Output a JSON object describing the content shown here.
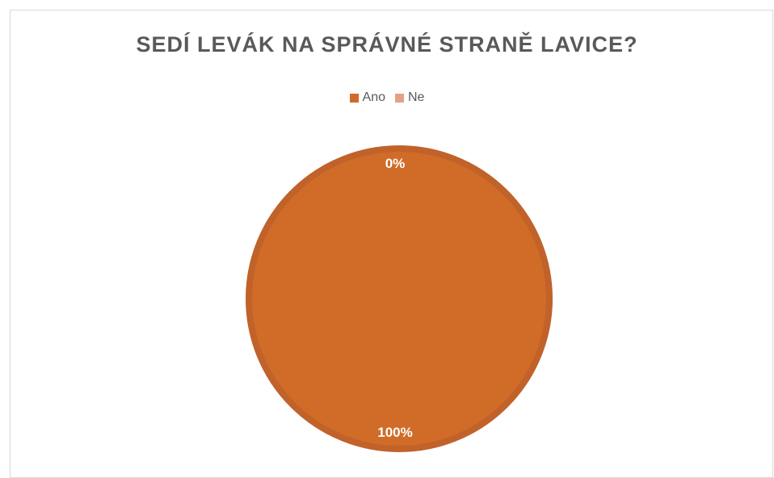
{
  "chart_data": {
    "type": "pie",
    "title": "SEDÍ LEVÁK NA SPRÁVNÉ STRANĚ LAVICE?",
    "categories": [
      "Ano",
      "Ne"
    ],
    "values": [
      100,
      0
    ],
    "data_labels": [
      "100%",
      "0%"
    ],
    "colors": [
      "#d06c28",
      "#e3a286"
    ],
    "slice_border_color": "#c0622a",
    "legend_position": "top"
  }
}
